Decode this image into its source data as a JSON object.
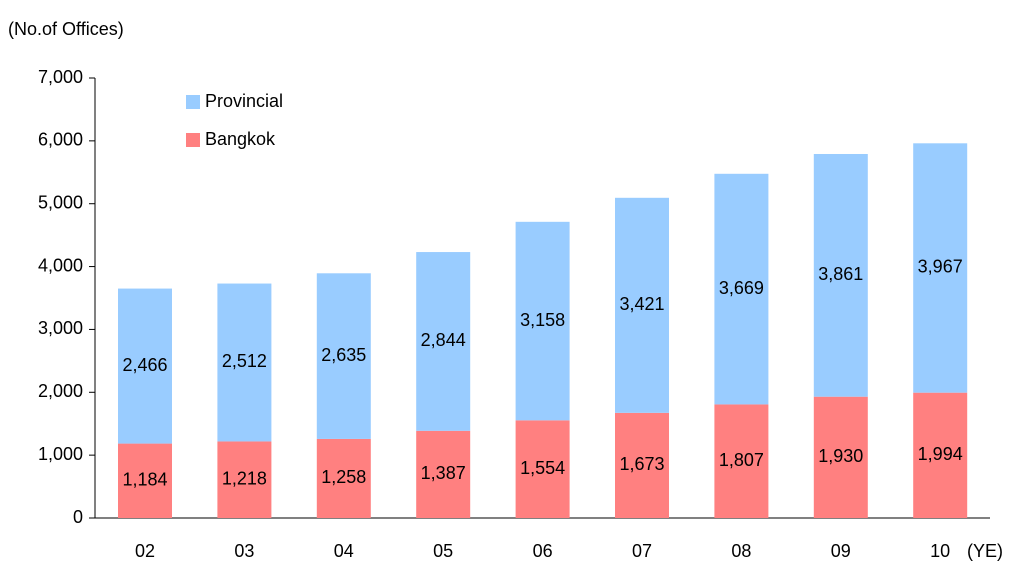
{
  "chart_data": {
    "type": "stacked_bar",
    "y_label": "(No.of Offices)",
    "x_label": "(YE)",
    "categories": [
      "02",
      "03",
      "04",
      "05",
      "06",
      "07",
      "08",
      "09",
      "10"
    ],
    "series": [
      {
        "name": "Bangkok",
        "color": "#ff8080",
        "values": [
          1184,
          1218,
          1258,
          1387,
          1554,
          1673,
          1807,
          1930,
          1994
        ],
        "value_labels": [
          "1,184",
          "1,218",
          "1,258",
          "1,387",
          "1,554",
          "1,673",
          "1,807",
          "1,930",
          "1,994"
        ]
      },
      {
        "name": "Provincial",
        "color": "#99ccff",
        "values": [
          2466,
          2512,
          2635,
          2844,
          3158,
          3421,
          3669,
          3861,
          3967
        ],
        "value_labels": [
          "2,466",
          "2,512",
          "2,635",
          "2,844",
          "3,158",
          "3,421",
          "3,669",
          "3,861",
          "3,967"
        ]
      }
    ],
    "ylim": [
      0,
      7000
    ],
    "yticks": [
      0,
      {
        "value": 1000,
        "label": "1,000"
      },
      {
        "value": 2000,
        "label": "2,000"
      },
      {
        "value": 3000,
        "label": "3,000"
      },
      {
        "value": 4000,
        "label": "4,000"
      },
      {
        "value": 5000,
        "label": "5,000"
      },
      {
        "value": 6000,
        "label": "6,000"
      },
      {
        "value": 7000,
        "label": "7,000"
      }
    ],
    "legend": "top-left"
  }
}
